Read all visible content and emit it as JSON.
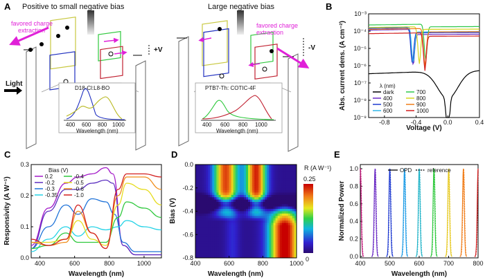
{
  "panels": {
    "a": "A",
    "b": "B",
    "c": "C",
    "d": "D",
    "e": "E"
  },
  "panel_a": {
    "left_title": "Positive to small negative bias",
    "right_title": "Large negative bias",
    "favored": "favored charge",
    "extraction": "extraction",
    "plus_v": "+V",
    "minus_v": "-V",
    "light": "Light",
    "left_material": "D18-Cl:L8-BO",
    "right_material": "PTB7-Th: COTIC-4F",
    "xlabel": "Wavelength (nm)",
    "ticks": [
      "400",
      "600",
      "800",
      "1000"
    ]
  },
  "chart_data": [
    {
      "id": "B",
      "type": "line",
      "xlabel": "Voltage (V)",
      "ylabel": "Abs. current dens. (A cm⁻²)",
      "xlim": [
        -1.0,
        0.4
      ],
      "ylim_log10": [
        -9,
        -3
      ],
      "x_ticks": [
        "-0.8",
        "-0.4",
        "0.0",
        "0.4"
      ],
      "y_ticks": [
        "10⁻³",
        "10⁻⁴",
        "10⁻⁵",
        "10⁻⁶",
        "10⁻⁷",
        "10⁻⁸",
        "10⁻⁹"
      ],
      "legend_title": "λ (nm)",
      "series": [
        {
          "name": "dark",
          "color": "#000000",
          "dip": 0.0,
          "left": -6.3,
          "right": -6.3,
          "slope": 0.55
        },
        {
          "name": "400",
          "color": "#6a2bc4",
          "dip": -0.44,
          "left": -3.9,
          "right": -4.2,
          "slope": 0.25
        },
        {
          "name": "500",
          "color": "#1e3ad0",
          "dip": -0.45,
          "left": -3.8,
          "right": -4.1,
          "slope": 0.25
        },
        {
          "name": "600",
          "color": "#2fb5e8",
          "dip": -0.44,
          "left": -3.75,
          "right": -4.05,
          "slope": 0.25
        },
        {
          "name": "700",
          "color": "#2ec84a",
          "dip": -0.28,
          "left": -3.6,
          "right": -3.75,
          "slope": 0.2
        },
        {
          "name": "800",
          "color": "#d6d61e",
          "dip": -0.36,
          "left": -3.75,
          "right": -3.9,
          "slope": 0.22
        },
        {
          "name": "900",
          "color": "#f07c18",
          "dip": -0.29,
          "left": -3.85,
          "right": -4.05,
          "slope": 0.22
        },
        {
          "name": "1000",
          "color": "#d21e1e",
          "dip": -0.29,
          "left": -4.1,
          "right": -4.3,
          "slope": 0.22
        }
      ]
    },
    {
      "id": "C",
      "type": "line",
      "xlabel": "Wavelength (nm)",
      "ylabel": "Responsivity (A W⁻¹)",
      "xlim": [
        350,
        1100
      ],
      "ylim": [
        0,
        0.3
      ],
      "x_ticks": [
        "400",
        "600",
        "800",
        "1000"
      ],
      "y_ticks": [
        "0.0",
        "0.1",
        "0.2",
        "0.3"
      ],
      "legend_title": "Bias (V)",
      "series": [
        {
          "name": "0.2",
          "color": "#a318c8",
          "pts": [
            [
              350,
              0.04
            ],
            [
              450,
              0.16
            ],
            [
              550,
              0.24
            ],
            [
              620,
              0.26
            ],
            [
              700,
              0.27
            ],
            [
              780,
              0.29
            ],
            [
              820,
              0.27
            ],
            [
              880,
              0.04
            ],
            [
              950,
              0.01
            ],
            [
              1100,
              0.01
            ]
          ]
        },
        {
          "name": "-0.2",
          "color": "#5a2ec0",
          "pts": [
            [
              350,
              0.03
            ],
            [
              450,
              0.15
            ],
            [
              550,
              0.22
            ],
            [
              620,
              0.22
            ],
            [
              700,
              0.24
            ],
            [
              780,
              0.25
            ],
            [
              820,
              0.24
            ],
            [
              880,
              0.04
            ],
            [
              950,
              0.01
            ],
            [
              1100,
              0.01
            ]
          ]
        },
        {
          "name": "-0.3",
          "color": "#1e72d8",
          "pts": [
            [
              350,
              0.03
            ],
            [
              450,
              0.1
            ],
            [
              550,
              0.17
            ],
            [
              620,
              0.14
            ],
            [
              700,
              0.19
            ],
            [
              780,
              0.18
            ],
            [
              830,
              0.14
            ],
            [
              880,
              0.05
            ],
            [
              950,
              0.02
            ],
            [
              1100,
              0.02
            ]
          ]
        },
        {
          "name": "-0.35",
          "color": "#22d2e6",
          "pts": [
            [
              350,
              0.02
            ],
            [
              450,
              0.06
            ],
            [
              550,
              0.1
            ],
            [
              620,
              0.07
            ],
            [
              700,
              0.1
            ],
            [
              780,
              0.09
            ],
            [
              850,
              0.1
            ],
            [
              900,
              0.12
            ],
            [
              1000,
              0.1
            ],
            [
              1100,
              0.09
            ]
          ]
        },
        {
          "name": "-0.4",
          "color": "#2ec83c",
          "pts": [
            [
              350,
              0.03
            ],
            [
              450,
              0.04
            ],
            [
              550,
              0.08
            ],
            [
              620,
              0.05
            ],
            [
              700,
              0.05
            ],
            [
              780,
              0.05
            ],
            [
              850,
              0.13
            ],
            [
              900,
              0.18
            ],
            [
              1000,
              0.16
            ],
            [
              1100,
              0.13
            ]
          ]
        },
        {
          "name": "-0.5",
          "color": "#e6dc1e",
          "pts": [
            [
              350,
              0.05
            ],
            [
              450,
              0.05
            ],
            [
              550,
              0.06
            ],
            [
              620,
              0.12
            ],
            [
              700,
              0.06
            ],
            [
              780,
              0.04
            ],
            [
              850,
              0.17
            ],
            [
              900,
              0.24
            ],
            [
              1000,
              0.22
            ],
            [
              1100,
              0.17
            ]
          ]
        },
        {
          "name": "-0.6",
          "color": "#f08c18",
          "pts": [
            [
              350,
              0.05
            ],
            [
              450,
              0.04
            ],
            [
              550,
              0.05
            ],
            [
              620,
              0.15
            ],
            [
              700,
              0.08
            ],
            [
              780,
              0.03
            ],
            [
              850,
              0.2
            ],
            [
              900,
              0.26
            ],
            [
              1000,
              0.26
            ],
            [
              1100,
              0.22
            ]
          ]
        },
        {
          "name": "-1.0",
          "color": "#d21e1e",
          "pts": [
            [
              350,
              0.06
            ],
            [
              450,
              0.04
            ],
            [
              550,
              0.06
            ],
            [
              620,
              0.17
            ],
            [
              700,
              0.08
            ],
            [
              780,
              0.03
            ],
            [
              850,
              0.22
            ],
            [
              900,
              0.27
            ],
            [
              1000,
              0.27
            ],
            [
              1100,
              0.26
            ]
          ]
        }
      ]
    },
    {
      "id": "D",
      "type": "heatmap",
      "xlabel": "Wavelength (nm)",
      "ylabel": "Bias (V)",
      "xlim": [
        400,
        1000
      ],
      "ylim": [
        -0.8,
        0.0
      ],
      "x_ticks": [
        "400",
        "600",
        "800",
        "1000"
      ],
      "y_ticks": [
        "0.0",
        "-0.2",
        "-0.4",
        "-0.6",
        "-0.8"
      ],
      "colorbar_title": "R (A W⁻¹)",
      "colorbar_max": "0.25",
      "colorbar_min": "0"
    },
    {
      "id": "E",
      "type": "line",
      "xlabel": "Wavelength (nm)",
      "ylabel": "Normalized Power",
      "xlim": [
        400,
        800
      ],
      "ylim": [
        0,
        1.0
      ],
      "x_ticks": [
        "400",
        "500",
        "600",
        "700",
        "800"
      ],
      "y_ticks": [
        "0.0",
        "0.2",
        "0.4",
        "0.6",
        "0.8",
        "1.0"
      ],
      "legend": [
        "OPD",
        "reference"
      ],
      "peaks": [
        {
          "center": 400,
          "color": "#c2187a"
        },
        {
          "center": 450,
          "color": "#6a2bc4"
        },
        {
          "center": 500,
          "color": "#1e3ad0"
        },
        {
          "center": 550,
          "color": "#1e9ce6"
        },
        {
          "center": 600,
          "color": "#22b4c8"
        },
        {
          "center": 650,
          "color": "#2ec83c"
        },
        {
          "center": 700,
          "color": "#e6c81e"
        },
        {
          "center": 750,
          "color": "#f07c18"
        },
        {
          "center": 800,
          "color": "#d21e1e"
        }
      ]
    }
  ]
}
